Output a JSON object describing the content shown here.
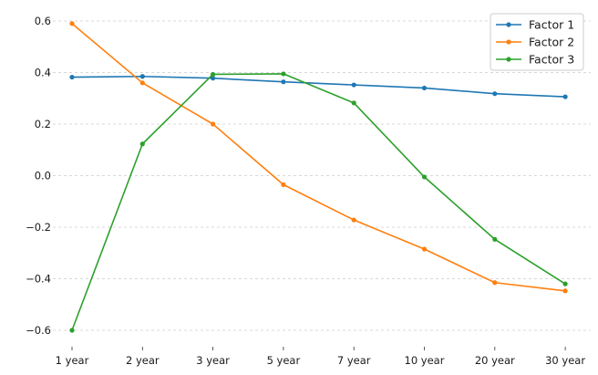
{
  "chart_data": {
    "type": "line",
    "title": "",
    "xlabel": "",
    "ylabel": "",
    "categories": [
      "1 year",
      "2 year",
      "3 year",
      "5 year",
      "7 year",
      "10 year",
      "20 year",
      "30 year"
    ],
    "ylim": [
      -0.65,
      0.65
    ],
    "yticks": [
      -0.6,
      -0.4,
      -0.2,
      0.0,
      0.2,
      0.4,
      0.6
    ],
    "ytick_labels": [
      "−0.6",
      "−0.4",
      "−0.2",
      "0.0",
      "0.2",
      "0.4",
      "0.6"
    ],
    "grid": "horizontal dashed",
    "legend_position": "top-right",
    "series": [
      {
        "name": "Factor 1",
        "color": "#1f77b4",
        "values": [
          0.382,
          0.385,
          0.378,
          0.364,
          0.352,
          0.34,
          0.318,
          0.306
        ]
      },
      {
        "name": "Factor 2",
        "color": "#ff7f0e",
        "values": [
          0.59,
          0.36,
          0.2,
          -0.035,
          -0.172,
          -0.285,
          -0.415,
          -0.447
        ]
      },
      {
        "name": "Factor 3",
        "color": "#2ca02c",
        "values": [
          -0.6,
          0.123,
          0.393,
          0.395,
          0.282,
          -0.005,
          -0.247,
          -0.42
        ]
      }
    ]
  }
}
